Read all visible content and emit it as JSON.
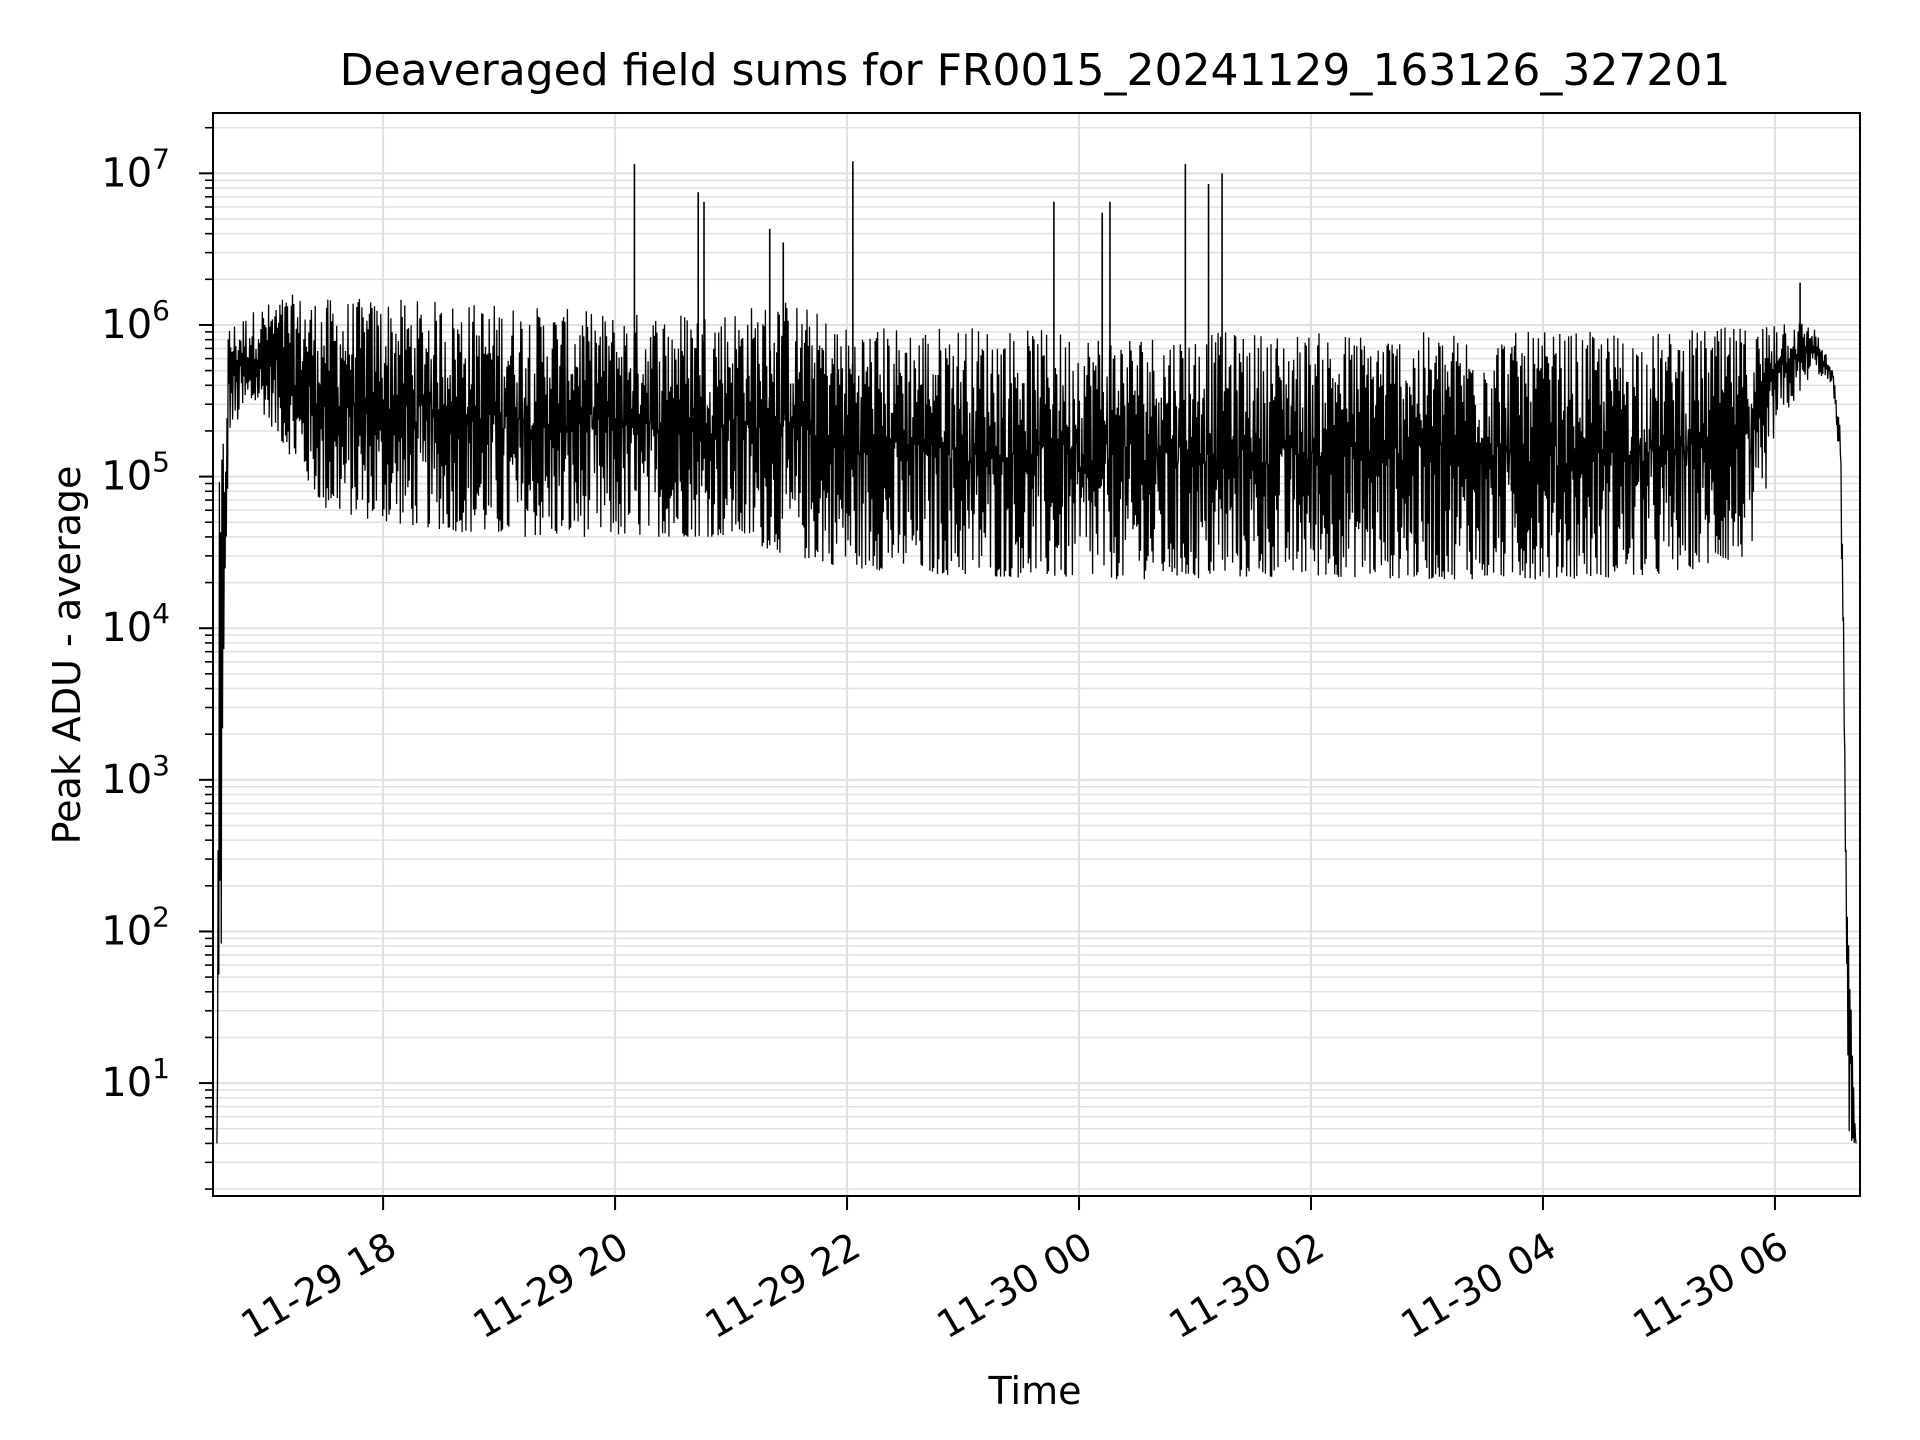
{
  "chart_data": {
    "type": "line",
    "title": "Deaveraged field sums for FR0015_20241129_163126_327201",
    "xlabel": "Time",
    "ylabel": "Peak ADU - average",
    "y_scale": "log",
    "ylim": [
      1.8,
      25000000
    ],
    "xlim": [
      "2024-11-29T16:32",
      "2024-11-30T06:44"
    ],
    "grid": true,
    "line_color": "#000000",
    "grid_color": "#e0e0e0",
    "x_ticks": [
      {
        "value": "2024-11-29T18:00",
        "label": "11-29 18"
      },
      {
        "value": "2024-11-29T20:00",
        "label": "11-29 20"
      },
      {
        "value": "2024-11-29T22:00",
        "label": "11-29 22"
      },
      {
        "value": "2024-11-30T00:00",
        "label": "11-30 00"
      },
      {
        "value": "2024-11-30T02:00",
        "label": "11-30 02"
      },
      {
        "value": "2024-11-30T04:00",
        "label": "11-30 04"
      },
      {
        "value": "2024-11-30T06:00",
        "label": "11-30 06"
      }
    ],
    "y_ticks": [
      {
        "value": 10,
        "base": "10",
        "exp": "1"
      },
      {
        "value": 100,
        "base": "10",
        "exp": "2"
      },
      {
        "value": 1000,
        "base": "10",
        "exp": "3"
      },
      {
        "value": 10000,
        "base": "10",
        "exp": "4"
      },
      {
        "value": 100000,
        "base": "10",
        "exp": "5"
      },
      {
        "value": 1000000,
        "base": "10",
        "exp": "6"
      },
      {
        "value": 10000000,
        "base": "10",
        "exp": "7"
      }
    ],
    "series": [
      {
        "envelope": [
          {
            "x": "2024-11-29T16:34",
            "low": 4,
            "high": 4
          },
          {
            "x": "2024-11-29T16:35",
            "low": 4,
            "high": 80000
          },
          {
            "x": "2024-11-29T16:40",
            "low": 200000,
            "high": 1000000
          },
          {
            "x": "2024-11-29T16:55",
            "low": 300000,
            "high": 1300000
          },
          {
            "x": "2024-11-29T17:10",
            "low": 150000,
            "high": 1600000
          },
          {
            "x": "2024-11-29T17:30",
            "low": 60000,
            "high": 1500000
          },
          {
            "x": "2024-11-29T18:00",
            "low": 50000,
            "high": 1500000
          },
          {
            "x": "2024-11-29T19:00",
            "low": 40000,
            "high": 1400000
          },
          {
            "x": "2024-11-29T20:00",
            "low": 40000,
            "high": 1200000
          },
          {
            "x": "2024-11-29T21:00",
            "low": 40000,
            "high": 1300000
          },
          {
            "x": "2024-11-29T21:30",
            "low": 30000,
            "high": 1500000
          },
          {
            "x": "2024-11-29T22:00",
            "low": 25000,
            "high": 1000000
          },
          {
            "x": "2024-11-29T23:00",
            "low": 22000,
            "high": 1000000
          },
          {
            "x": "2024-11-30T00:00",
            "low": 21000,
            "high": 900000
          },
          {
            "x": "2024-11-30T01:00",
            "low": 21000,
            "high": 900000
          },
          {
            "x": "2024-11-30T02:00",
            "low": 22000,
            "high": 900000
          },
          {
            "x": "2024-11-30T03:00",
            "low": 21000,
            "high": 900000
          },
          {
            "x": "2024-11-30T04:00",
            "low": 21000,
            "high": 900000
          },
          {
            "x": "2024-11-30T05:00",
            "low": 22000,
            "high": 900000
          },
          {
            "x": "2024-11-30T05:50",
            "low": 30000,
            "high": 1000000
          },
          {
            "x": "2024-11-30T06:00",
            "low": 200000,
            "high": 1200000
          },
          {
            "x": "2024-11-30T06:20",
            "low": 500000,
            "high": 1000000
          },
          {
            "x": "2024-11-30T06:30",
            "low": 400000,
            "high": 500000
          },
          {
            "x": "2024-11-30T06:34",
            "low": 100000,
            "high": 200000
          },
          {
            "x": "2024-11-30T06:38",
            "low": 4,
            "high": 100
          },
          {
            "x": "2024-11-30T06:42",
            "low": 4,
            "high": 4
          }
        ],
        "spikes": [
          {
            "x": "2024-11-29T20:10",
            "y": 11500000
          },
          {
            "x": "2024-11-29T20:43",
            "y": 7500000
          },
          {
            "x": "2024-11-29T20:46",
            "y": 6500000
          },
          {
            "x": "2024-11-29T21:20",
            "y": 4300000
          },
          {
            "x": "2024-11-29T21:27",
            "y": 3500000
          },
          {
            "x": "2024-11-29T22:03",
            "y": 12000000
          },
          {
            "x": "2024-11-29T23:47",
            "y": 6500000
          },
          {
            "x": "2024-11-30T00:12",
            "y": 5500000
          },
          {
            "x": "2024-11-30T00:16",
            "y": 6500000
          },
          {
            "x": "2024-11-30T00:55",
            "y": 11500000
          },
          {
            "x": "2024-11-30T01:07",
            "y": 8500000
          },
          {
            "x": "2024-11-30T01:14",
            "y": 10000000
          },
          {
            "x": "2024-11-30T06:13",
            "y": 1900000
          }
        ]
      }
    ]
  }
}
